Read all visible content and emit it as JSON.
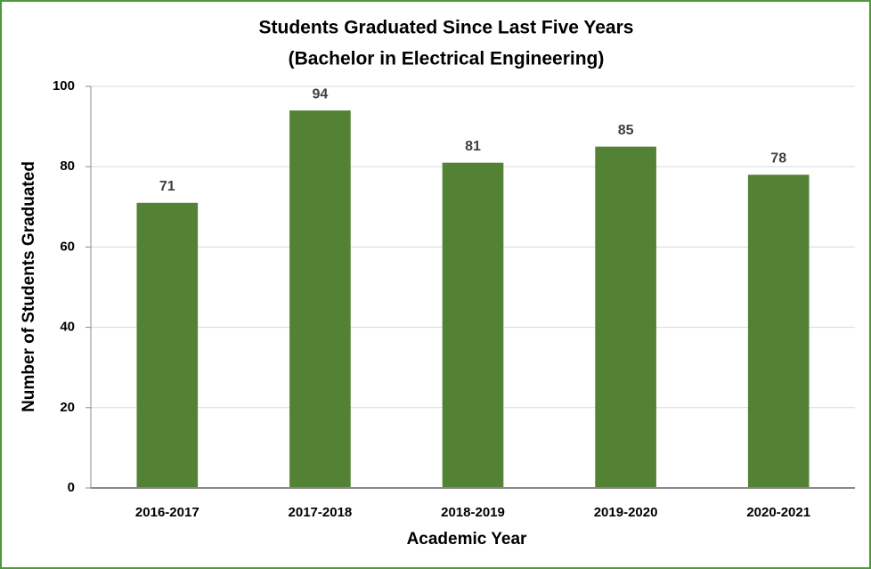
{
  "chart_data": {
    "type": "bar",
    "title": [
      "Students Graduated Since Last Five Years",
      "(Bachelor in Electrical Engineering)"
    ],
    "x_label": "Academic Year",
    "y_label": "Number of Students Graduated",
    "categories": [
      "2016-2017",
      "2017-2018",
      "2018-2019",
      "2019-2020",
      "2020-2021"
    ],
    "values": [
      71,
      94,
      81,
      85,
      78
    ],
    "color": "#548235",
    "ylim": [
      0,
      100
    ],
    "yticks": [
      0,
      20,
      40,
      60,
      80,
      100
    ],
    "grid": true
  }
}
